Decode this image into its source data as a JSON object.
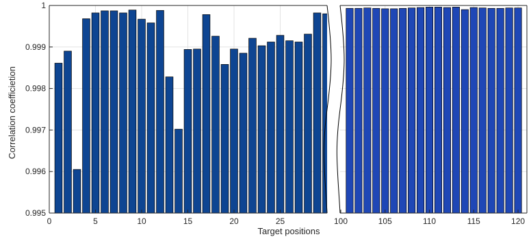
{
  "chart_data": {
    "type": "bar",
    "xlabel": "Target positions",
    "ylabel": "Correlation coefficietion",
    "ylim": [
      0.995,
      1
    ],
    "yticks": [
      "0.995",
      "0.996",
      "0.997",
      "0.998",
      "0.999",
      "1"
    ],
    "grid": true,
    "axis_break": "between 30 and 100",
    "segments": [
      {
        "name": "",
        "xlim": [
          0,
          30
        ],
        "xticks": [
          "0",
          "5",
          "10",
          "15",
          "20",
          "25"
        ],
        "x": [
          1,
          2,
          3,
          4,
          5,
          6,
          7,
          8,
          9,
          10,
          11,
          12,
          13,
          14,
          15,
          16,
          17,
          18,
          19,
          20,
          21,
          22,
          23,
          24,
          25,
          26,
          27,
          28,
          29,
          30
        ],
        "values": [
          0.99861,
          0.9989,
          0.99605,
          0.99968,
          0.99982,
          0.99987,
          0.99987,
          0.99982,
          0.99989,
          0.99967,
          0.99958,
          0.99988,
          0.99828,
          0.99702,
          0.99894,
          0.99895,
          0.99978,
          0.99926,
          0.99858,
          0.99895,
          0.99885,
          0.99921,
          0.99903,
          0.99912,
          0.99928,
          0.99915,
          0.99912,
          0.99931,
          0.99982,
          0.9998
        ],
        "bar_color": "#0e4592"
      },
      {
        "name": "",
        "xlim": [
          100,
          121
        ],
        "xticks": [
          "100",
          "105",
          "110",
          "115",
          "120"
        ],
        "x": [
          101,
          102,
          103,
          104,
          105,
          106,
          107,
          108,
          109,
          110,
          111,
          112,
          113,
          114,
          115,
          116,
          117,
          118,
          119,
          120
        ],
        "values": [
          0.99993,
          0.99993,
          0.99994,
          0.99993,
          0.99992,
          0.99992,
          0.99993,
          0.99994,
          0.99995,
          0.99996,
          0.99996,
          0.99995,
          0.99996,
          0.9999,
          0.99995,
          0.99994,
          0.99993,
          0.99993,
          0.99994,
          0.99994
        ],
        "bar_color": "#1f47b6"
      }
    ]
  }
}
